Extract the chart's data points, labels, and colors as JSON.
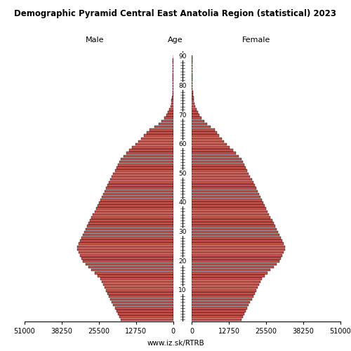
{
  "title": "Demographic Pyramid Central East Anatolia Region (statistical) 2023",
  "xlabel_left": "Male",
  "xlabel_right": "Female",
  "xlabel_center": "Age",
  "watermark": "www.iz.sk/RTRB",
  "bar_color": "#c8504a",
  "bar_edge_color": "#000000",
  "background_color": "#ffffff",
  "xlim": 51000,
  "age_tick_labels": [
    10,
    20,
    30,
    40,
    50,
    60,
    70,
    80,
    90
  ],
  "male": [
    18000,
    18500,
    19000,
    19500,
    20000,
    20500,
    21000,
    21500,
    22000,
    22500,
    23000,
    23500,
    24000,
    24500,
    25000,
    26000,
    27000,
    28000,
    29000,
    30000,
    31000,
    31500,
    32000,
    32500,
    33000,
    33000,
    32500,
    32000,
    31500,
    31000,
    30500,
    30000,
    29500,
    29000,
    28500,
    28000,
    27500,
    27000,
    26500,
    26000,
    25500,
    25000,
    24500,
    24000,
    23500,
    23000,
    22500,
    22000,
    21500,
    21000,
    20500,
    20000,
    19500,
    19000,
    18500,
    18000,
    17000,
    16000,
    15000,
    14000,
    13000,
    12000,
    11000,
    10000,
    9000,
    8000,
    6500,
    5000,
    4000,
    3000,
    2200,
    1700,
    1300,
    950,
    700,
    500,
    350,
    240,
    160,
    100,
    65,
    40,
    25,
    15,
    10,
    6,
    4,
    2,
    1,
    1,
    0
  ],
  "female": [
    17000,
    17500,
    18000,
    18500,
    19000,
    19500,
    20000,
    20500,
    21000,
    21500,
    22000,
    22500,
    23000,
    23500,
    24000,
    25000,
    26000,
    27000,
    28000,
    29000,
    30000,
    30500,
    31000,
    31500,
    32000,
    32000,
    31500,
    31000,
    30500,
    30000,
    29500,
    29000,
    28500,
    28000,
    27500,
    27000,
    26500,
    26000,
    25500,
    25000,
    24500,
    24000,
    23500,
    23000,
    22500,
    22000,
    21500,
    21000,
    20500,
    20000,
    19500,
    19000,
    18500,
    18000,
    17500,
    17000,
    16000,
    15000,
    14000,
    13000,
    12000,
    11000,
    10200,
    9400,
    8600,
    7800,
    6500,
    5200,
    4100,
    3200,
    2500,
    2000,
    1600,
    1200,
    900,
    680,
    500,
    360,
    250,
    170,
    110,
    70,
    45,
    28,
    18,
    11,
    7,
    4,
    2,
    1,
    1
  ]
}
